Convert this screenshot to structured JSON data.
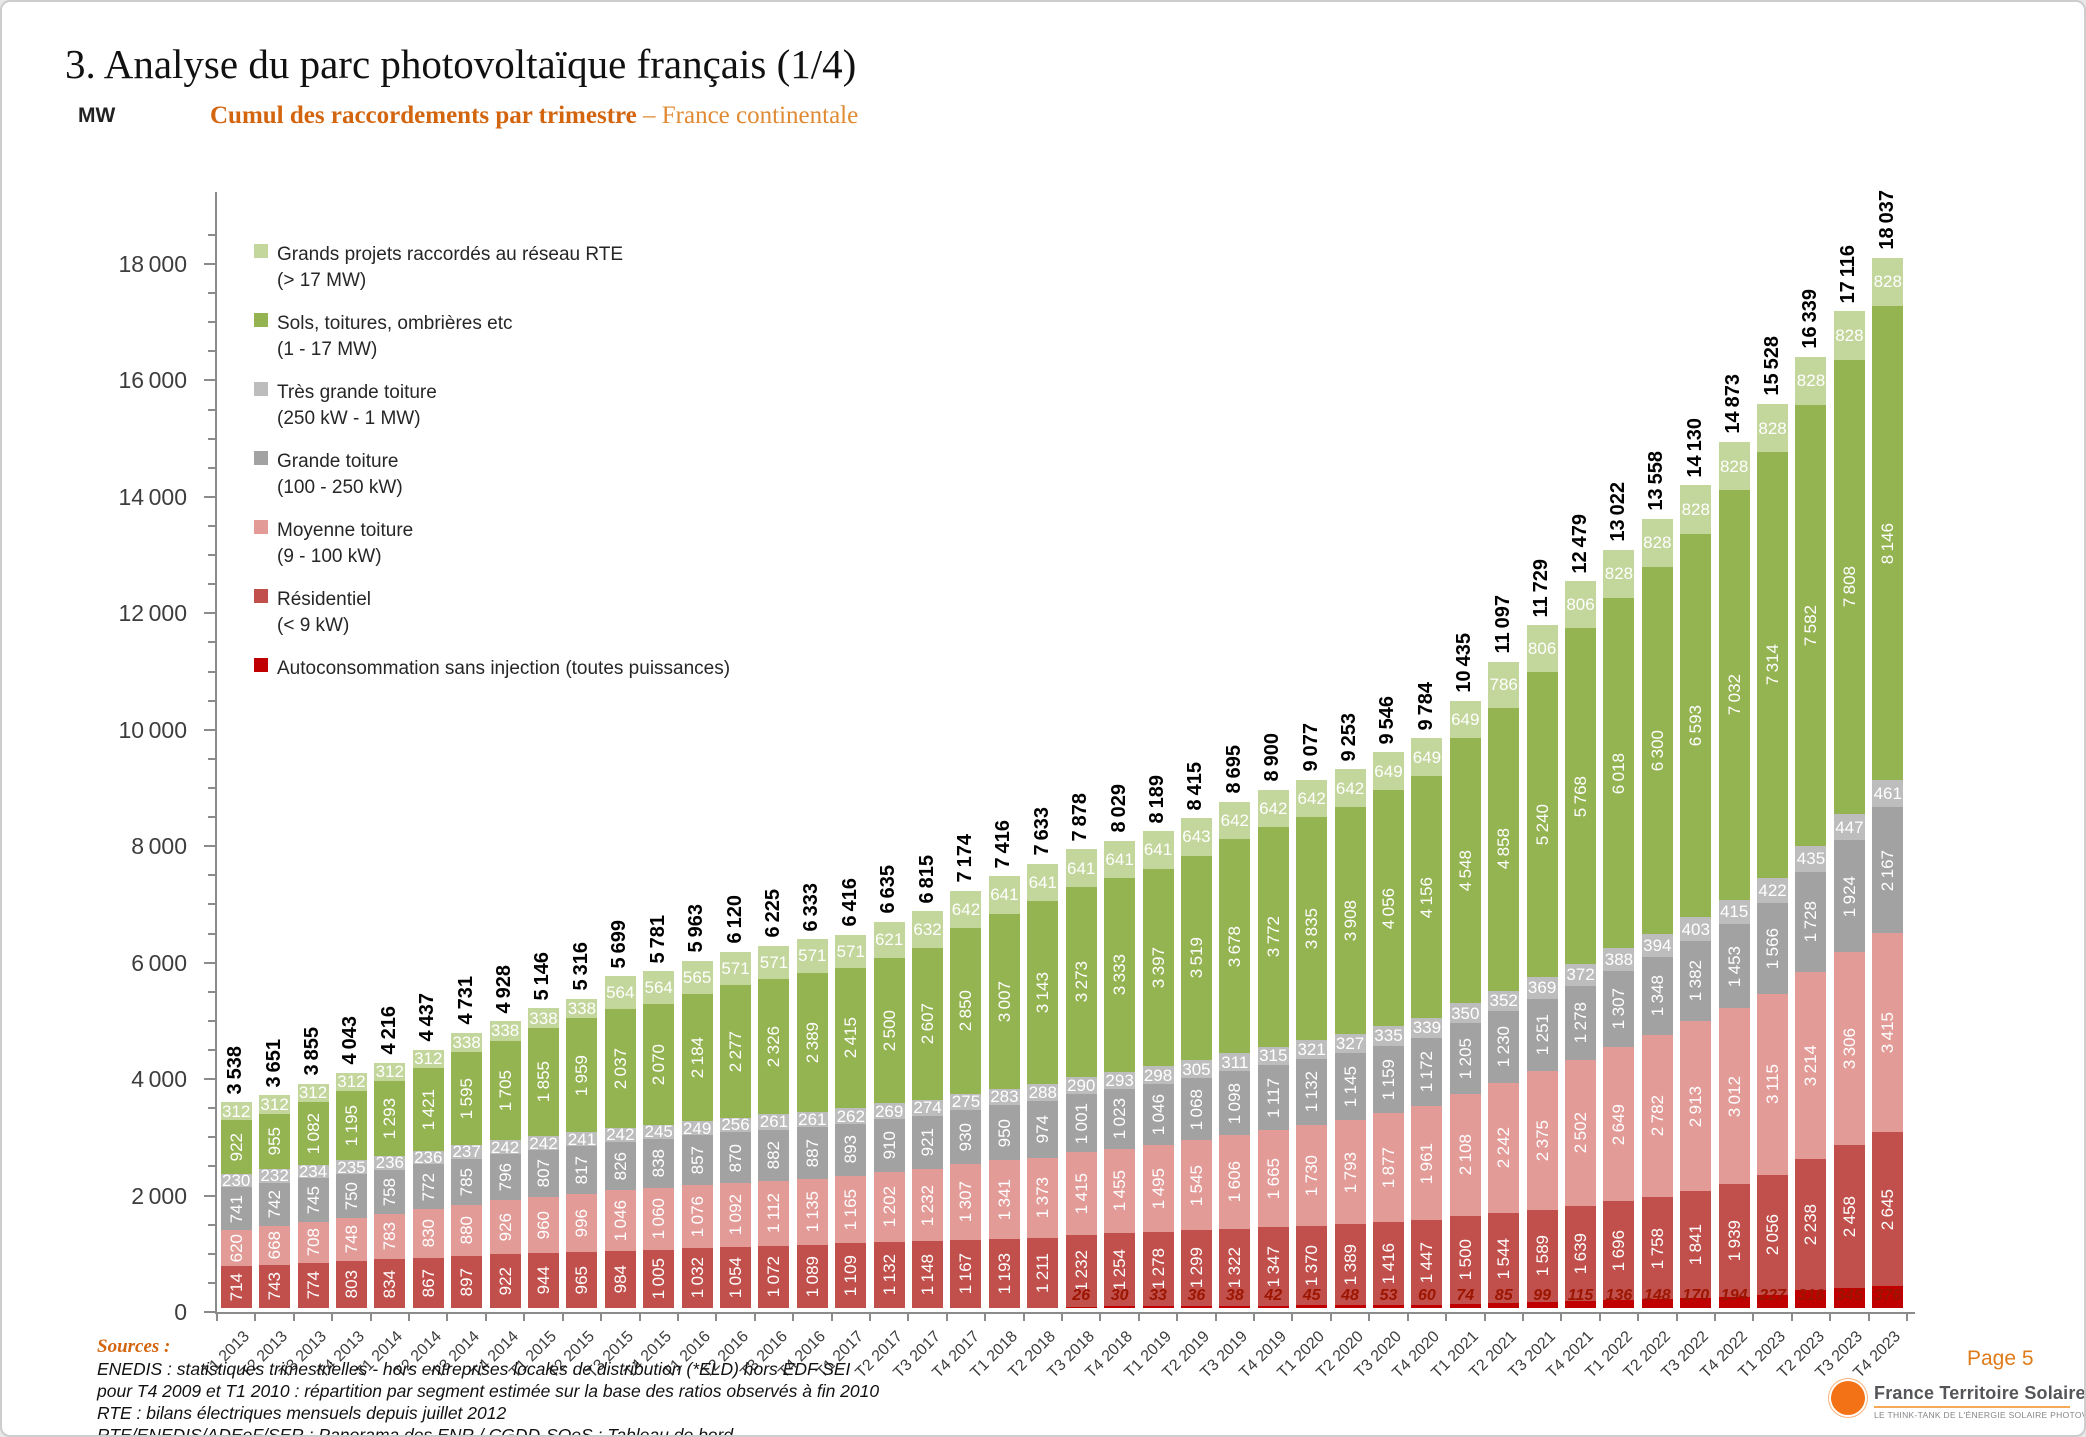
{
  "header": {
    "title": "3. Analyse du parc photovoltaïque français (1/4)",
    "unit": "MW",
    "subtitle_bold": "Cumul des raccordements par trimestre",
    "subtitle_rest": " – France continentale"
  },
  "legend": [
    {
      "label": "Grands projets raccordés au réseau RTE",
      "range": "(> 17 MW)",
      "color": "#c3d69b"
    },
    {
      "label": "Sols, toitures, ombrières etc",
      "range": "(1 - 17 MW)",
      "color": "#94b351"
    },
    {
      "label": "Très grande toiture",
      "range": "(250 kW - 1 MW)",
      "color": "#bdbdbd"
    },
    {
      "label": "Grande toiture",
      "range": "(100 - 250 kW)",
      "color": "#a2a2a2"
    },
    {
      "label": "Moyenne toiture",
      "range": "(9 - 100 kW)",
      "color": "#e39b98"
    },
    {
      "label": "Résidentiel",
      "range": "(< 9 kW)",
      "color": "#c1504c"
    },
    {
      "label": "Autoconsommation sans injection (toutes puissances)",
      "range": "",
      "color": "#c00000"
    }
  ],
  "chart_data": {
    "type": "bar",
    "stacked": true,
    "title": "Cumul des raccordements par trimestre – France continentale",
    "ylabel": "MW",
    "ylim": [
      0,
      18000
    ],
    "ytick_major": 2000,
    "ytick_minor": 500,
    "grid": false,
    "legend_position": "top-left",
    "categories": [
      "T1 2013",
      "T2 2013",
      "T3 2013",
      "T4 2013",
      "T1 2014",
      "T2 2014",
      "T3 2014",
      "T4 2014",
      "T1 2015",
      "T2 2015",
      "T3 2015",
      "T4 2015",
      "T1 2016",
      "T2 2016",
      "T3 2016",
      "T4 2016",
      "T1 2017",
      "T2 2017",
      "T3 2017",
      "T4 2017",
      "T1 2018",
      "T2 2018",
      "T3 2018",
      "T4 2018",
      "T1 2019",
      "T2 2019",
      "T3 2019",
      "T4 2019",
      "T1 2020",
      "T2 2020",
      "T3 2020",
      "T4 2020",
      "T1 2021",
      "T2 2021",
      "T3 2021",
      "T4 2021",
      "T1 2022",
      "T2 2022",
      "T3 2022",
      "T4 2022",
      "T1 2023",
      "T2 2023",
      "T3 2023",
      "T4 2023"
    ],
    "series": [
      {
        "name": "Autoconsommation sans injection (toutes puissances)",
        "color": "#c00000",
        "values": [
          0,
          0,
          0,
          0,
          0,
          0,
          0,
          0,
          0,
          0,
          0,
          0,
          0,
          0,
          0,
          0,
          0,
          0,
          0,
          0,
          0,
          0,
          26,
          30,
          33,
          36,
          38,
          42,
          45,
          48,
          53,
          60,
          74,
          85,
          99,
          115,
          136,
          148,
          170,
          194,
          227,
          316,
          345,
          376
        ]
      },
      {
        "name": "Résidentiel (< 9 kW)",
        "color": "#c1504c",
        "values": [
          714,
          743,
          774,
          803,
          834,
          867,
          897,
          922,
          944,
          965,
          984,
          1005,
          1032,
          1054,
          1072,
          1089,
          1109,
          1132,
          1148,
          1167,
          1193,
          1211,
          1232,
          1254,
          1278,
          1299,
          1322,
          1347,
          1370,
          1389,
          1416,
          1447,
          1500,
          1544,
          1589,
          1639,
          1696,
          1758,
          1841,
          1939,
          2056,
          2238,
          2458,
          2645
        ]
      },
      {
        "name": "Moyenne toiture (9 - 100 kW)",
        "color": "#e39b98",
        "values": [
          620,
          668,
          708,
          748,
          783,
          830,
          880,
          926,
          960,
          996,
          1046,
          1060,
          1076,
          1092,
          1112,
          1135,
          1165,
          1202,
          1232,
          1307,
          1341,
          1373,
          1415,
          1455,
          1495,
          1545,
          1606,
          1665,
          1730,
          1793,
          1877,
          1961,
          2108,
          2242,
          2375,
          2502,
          2649,
          2782,
          2913,
          3012,
          3115,
          3214,
          3306,
          3415
        ]
      },
      {
        "name": "Grande toiture (100 - 250 kW)",
        "color": "#a2a2a2",
        "values": [
          741,
          742,
          745,
          750,
          758,
          772,
          785,
          796,
          807,
          817,
          826,
          838,
          857,
          870,
          882,
          887,
          893,
          910,
          921,
          930,
          950,
          974,
          1001,
          1023,
          1046,
          1068,
          1098,
          1117,
          1132,
          1145,
          1159,
          1172,
          1205,
          1230,
          1251,
          1278,
          1307,
          1348,
          1382,
          1453,
          1566,
          1728,
          1924,
          2167
        ]
      },
      {
        "name": "Très grande toiture (250 kW - 1 MW)",
        "color": "#bdbdbd",
        "values": [
          230,
          232,
          234,
          235,
          236,
          236,
          237,
          242,
          242,
          241,
          242,
          245,
          249,
          256,
          261,
          261,
          262,
          269,
          274,
          275,
          283,
          288,
          290,
          293,
          298,
          305,
          311,
          315,
          321,
          327,
          335,
          339,
          350,
          352,
          369,
          372,
          388,
          394,
          403,
          415,
          422,
          435,
          447,
          461
        ]
      },
      {
        "name": "Sols, toitures, ombrières etc (1 - 17 MW)",
        "color": "#94b351",
        "values": [
          922,
          955,
          1082,
          1195,
          1293,
          1421,
          1595,
          1705,
          1855,
          1959,
          2037,
          2070,
          2184,
          2277,
          2326,
          2389,
          2415,
          2500,
          2607,
          2850,
          3007,
          3143,
          3273,
          3333,
          3397,
          3519,
          3678,
          3772,
          3835,
          3908,
          4056,
          4156,
          4548,
          4858,
          5240,
          5768,
          6018,
          6300,
          6593,
          7032,
          7314,
          7582,
          7808,
          8146
        ]
      },
      {
        "name": "Grands projets raccordés au réseau RTE (> 17 MW)",
        "color": "#c3d69b",
        "values": [
          312,
          312,
          312,
          312,
          312,
          312,
          338,
          338,
          338,
          338,
          564,
          564,
          565,
          571,
          571,
          571,
          571,
          621,
          632,
          642,
          641,
          641,
          641,
          641,
          641,
          643,
          642,
          642,
          642,
          642,
          649,
          649,
          649,
          786,
          806,
          806,
          828,
          828,
          828,
          828,
          828,
          828,
          828,
          828
        ]
      }
    ],
    "totals": [
      3538,
      3651,
      3855,
      4043,
      4216,
      4437,
      4731,
      4928,
      5146,
      5316,
      5699,
      5781,
      5963,
      6120,
      6225,
      6333,
      6416,
      6635,
      6815,
      7174,
      7416,
      7633,
      7878,
      8029,
      8189,
      8415,
      8695,
      8900,
      9077,
      9253,
      9546,
      9784,
      10435,
      11097,
      11729,
      12479,
      13022,
      13558,
      14130,
      14873,
      15528,
      16339,
      17116,
      18037
    ]
  },
  "sources": {
    "head": "Sources :",
    "lines": [
      "ENEDIS : statistiques trimestrielles - hors entreprises locales de distribution (*ELD) hors EDF SEI",
      "pour T4 2009 et T1 2010 : répartition par segment estimée sur la base des ratios observés à fin 2010",
      "RTE : bilans électriques mensuels depuis juillet 2012",
      "RTE/ENEDIS/ADEeF/SER : Panorama des ENR /  CGDD-SOeS : Tableau de bord"
    ]
  },
  "footer": {
    "page": "Page 5",
    "logo_title": "France Territoire Solaire",
    "logo_sub": "LE THINK-TANK DE L'ÉNERGIE SOLAIRE PHOTOVOLTAÏQUE",
    "accent_color": "#f47216"
  }
}
